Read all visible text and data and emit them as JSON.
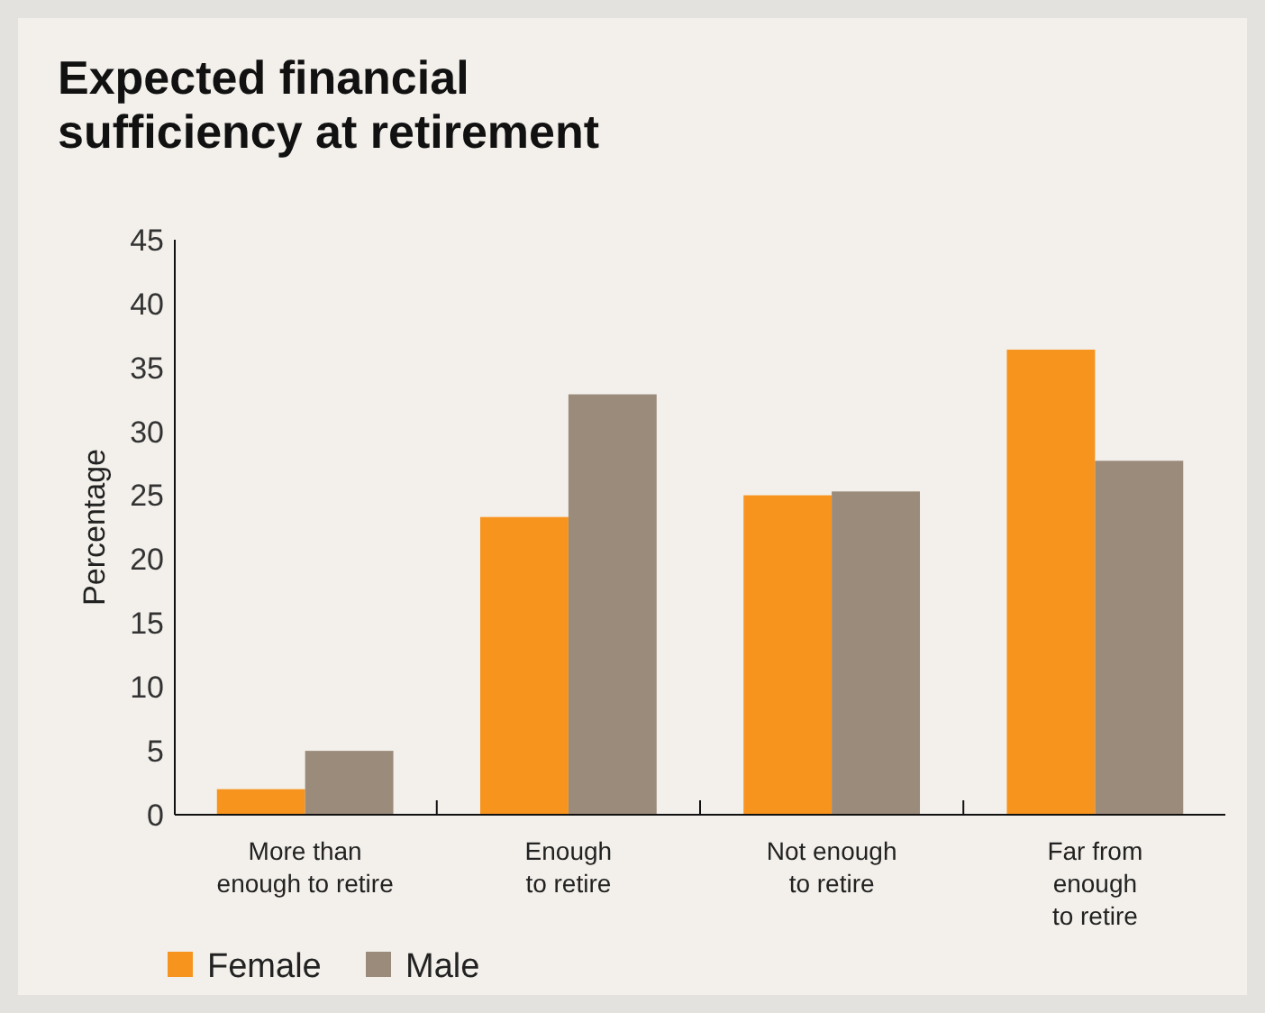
{
  "chart_data": {
    "type": "bar",
    "title": "Expected financial\nsufficiency at retirement",
    "ylabel": "Percentage",
    "categories": [
      "More than\nenough to retire",
      "Enough\nto retire",
      "Not enough\nto retire",
      "Far from\nenough\nto retire"
    ],
    "series": [
      {
        "name": "Female",
        "color": "#f7941e",
        "values": [
          2,
          23.3,
          25,
          36.4
        ]
      },
      {
        "name": "Male",
        "color": "#9b8b7b",
        "values": [
          5,
          32.9,
          25.3,
          27.7
        ]
      }
    ],
    "ylim": [
      0,
      45
    ],
    "yticks": [
      0,
      5,
      10,
      15,
      20,
      25,
      30,
      35,
      40,
      45
    ],
    "grid": false,
    "legend": "bottom left"
  }
}
